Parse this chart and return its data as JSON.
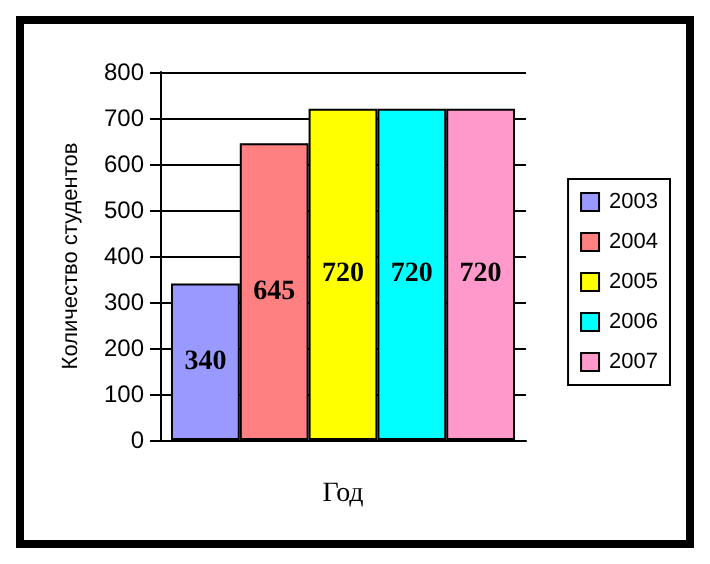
{
  "chart_data": {
    "type": "bar",
    "xlabel": "Год",
    "ylabel": "Количество студентов",
    "categories": [
      null
    ],
    "series": [
      {
        "name": "2003",
        "color": "#9999ff",
        "values": [
          340
        ]
      },
      {
        "name": "2004",
        "color": "#ff8080",
        "values": [
          645
        ]
      },
      {
        "name": "2005",
        "color": "#ffff00",
        "values": [
          720
        ]
      },
      {
        "name": "2006",
        "color": "#00ffff",
        "values": [
          720
        ]
      },
      {
        "name": "2007",
        "color": "#ff99cc",
        "values": [
          720
        ]
      }
    ],
    "ylim": [
      0,
      800
    ],
    "yticks": [
      0,
      100,
      200,
      300,
      400,
      500,
      600,
      700,
      800
    ],
    "grid": "y",
    "legend": "right",
    "data_labels": true
  }
}
